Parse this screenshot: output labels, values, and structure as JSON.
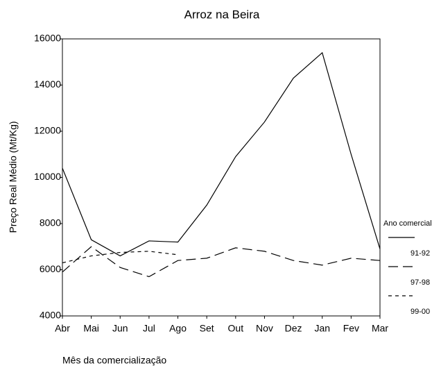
{
  "chart_data": {
    "type": "line",
    "title": "Arroz na Beira",
    "x_label": "Mês da comercialização",
    "y_label": "Preço Real Médio (Mt/Kg)",
    "legend_title": "Ano comercial",
    "legend": "right",
    "categories": [
      "Abr",
      "Mai",
      "Jun",
      "Jul",
      "Ago",
      "Set",
      "Out",
      "Nov",
      "Dez",
      "Jan",
      "Fev",
      "Mar"
    ],
    "series": [
      {
        "name": "91-92",
        "color": "#000000",
        "dash": "none",
        "values": [
          10400,
          7300,
          6600,
          7250,
          7200,
          8800,
          10900,
          12400,
          14300,
          15400,
          11000,
          6900
        ]
      },
      {
        "name": "97-98",
        "color": "#000000",
        "dash": "14 7",
        "values": [
          5900,
          7000,
          6100,
          5700,
          6400,
          6500,
          6950,
          6800,
          6400,
          6200,
          6500,
          6400
        ]
      },
      {
        "name": "99-00",
        "color": "#000000",
        "dash": "5 5",
        "values": [
          6300,
          6600,
          6750,
          6800,
          6650,
          null,
          null,
          null,
          null,
          null,
          null,
          null
        ]
      }
    ],
    "ylim": [
      4000,
      16000
    ],
    "yticks": [
      4000,
      6000,
      8000,
      10000,
      12000,
      14000,
      16000
    ],
    "grid": false
  }
}
